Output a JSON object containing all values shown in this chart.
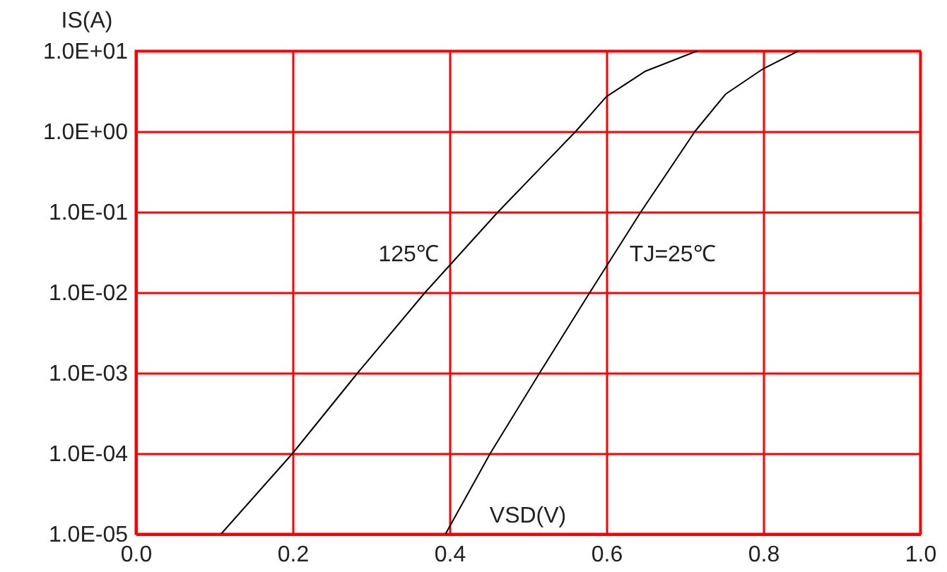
{
  "chart_data": {
    "type": "line",
    "xlabel": "VSD(V)",
    "ylabel": "IS(A)",
    "log": "y",
    "grid": true,
    "legend": false,
    "marker": "none",
    "line_style": "solid",
    "xlim": [
      0,
      1
    ],
    "xticks": [
      {
        "value": 0,
        "label": "0.0"
      },
      {
        "value": 0.2,
        "label": "0.2"
      },
      {
        "value": 0.4,
        "label": "0.4"
      },
      {
        "value": 0.6,
        "label": "0.6"
      },
      {
        "value": 0.8,
        "label": "0.8"
      },
      {
        "value": 1,
        "label": "1.0"
      }
    ],
    "ylim": [
      1e-05,
      10
    ],
    "yticks": [
      {
        "value": 1e-05,
        "label": "1.0E-05"
      },
      {
        "value": 0.0001,
        "label": "1.0E-04"
      },
      {
        "value": 0.001,
        "label": "1.0E-03"
      },
      {
        "value": 0.01,
        "label": "1.0E-02"
      },
      {
        "value": 0.1,
        "label": "1.0E-01"
      },
      {
        "value": 1,
        "label": "1.0E+00"
      },
      {
        "value": 10,
        "label": "1.0E+01"
      }
    ],
    "series": [
      {
        "name": "125℃",
        "color": "#000000",
        "x": [
          0.109,
          0.2,
          0.283,
          0.369,
          0.462,
          0.561,
          0.6,
          0.65,
          0.716
        ],
        "values": [
          1e-05,
          0.0001,
          0.001,
          0.01,
          0.1,
          1,
          2.7,
          5.6,
          10
        ]
      },
      {
        "name": "TJ=25℃",
        "color": "#000000",
        "x": [
          0.395,
          0.452,
          0.515,
          0.579,
          0.644,
          0.713,
          0.752,
          0.8,
          0.845
        ],
        "values": [
          1e-05,
          0.0001,
          0.001,
          0.01,
          0.1,
          1,
          2.9,
          6,
          10
        ]
      }
    ]
  }
}
